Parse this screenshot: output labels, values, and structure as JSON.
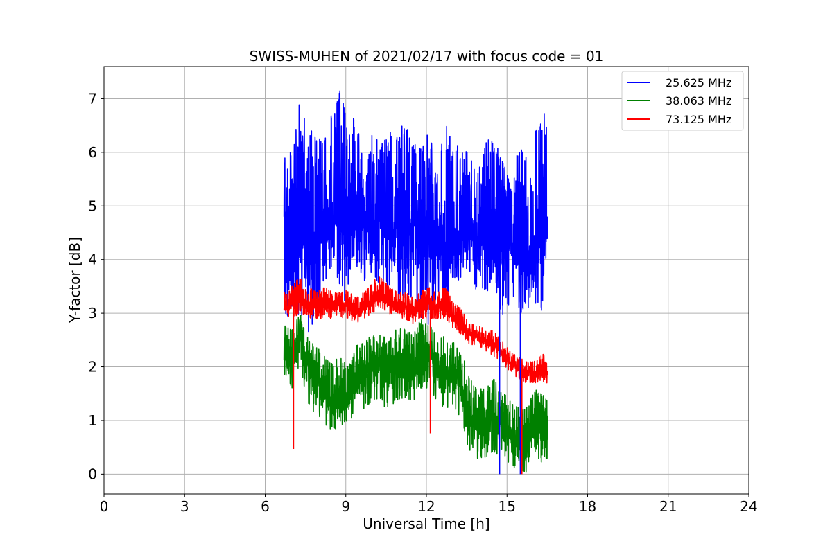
{
  "chart_data": {
    "type": "line",
    "title": "SWISS-MUHEN of 2021/02/17 with focus code = 01",
    "xlabel": "Universal Time [h]",
    "ylabel": "Y-factor [dB]",
    "xlim": [
      0,
      24
    ],
    "ylim": [
      -0.37,
      7.6
    ],
    "xticks": [
      0,
      3,
      6,
      9,
      12,
      15,
      18,
      21,
      24
    ],
    "yticks": [
      0,
      1,
      2,
      3,
      4,
      5,
      6,
      7
    ],
    "grid": true,
    "legend_position": "top-right",
    "series": [
      {
        "name": "25.625 MHz",
        "color": "#0000ff",
        "x": [
          6.7,
          7.0,
          7.3,
          7.6,
          7.9,
          8.2,
          8.5,
          8.8,
          9.1,
          9.4,
          9.7,
          10.0,
          10.3,
          10.6,
          10.9,
          11.2,
          11.5,
          11.8,
          12.1,
          12.4,
          12.7,
          13.0,
          13.3,
          13.6,
          13.9,
          14.2,
          14.5,
          14.8,
          15.1,
          15.4,
          15.7,
          16.0,
          16.3,
          16.5
        ],
        "values": [
          4.6,
          4.4,
          4.8,
          4.2,
          4.6,
          4.7,
          4.8,
          5.0,
          4.9,
          4.7,
          4.8,
          4.6,
          4.9,
          4.8,
          4.6,
          4.5,
          4.6,
          4.7,
          4.8,
          4.6,
          4.0,
          4.4,
          4.5,
          4.6,
          4.5,
          4.4,
          4.2,
          4.3,
          4.5,
          4.2,
          4.1,
          4.3,
          4.4,
          4.8
        ],
        "low": [
          3.0,
          2.8,
          2.9,
          2.4,
          3.0,
          3.6,
          3.8,
          3.4,
          3.0,
          3.8,
          3.6,
          3.7,
          3.4,
          3.2,
          3.3,
          3.2,
          3.3,
          3.0,
          2.6,
          3.4,
          3.0,
          3.6,
          3.6,
          3.8,
          3.4,
          3.4,
          3.3,
          2.9,
          3.2,
          3.0,
          3.0,
          3.2,
          3.0,
          4.4
        ],
        "high": [
          6.3,
          6.0,
          7.1,
          6.4,
          6.5,
          6.2,
          6.8,
          7.2,
          6.4,
          6.8,
          5.6,
          6.4,
          6.1,
          6.5,
          6.3,
          6.6,
          6.2,
          6.1,
          6.5,
          5.6,
          6.7,
          6.1,
          6.3,
          6.0,
          5.7,
          6.2,
          6.3,
          5.9,
          5.5,
          6.0,
          6.1,
          6.4,
          6.6,
          7.0
        ]
      },
      {
        "name": "38.063 MHz",
        "color": "#008000",
        "x": [
          6.7,
          7.0,
          7.3,
          7.6,
          7.9,
          8.2,
          8.5,
          8.8,
          9.1,
          9.4,
          9.7,
          10.0,
          10.3,
          10.6,
          10.9,
          11.2,
          11.5,
          11.8,
          12.1,
          12.4,
          12.7,
          13.0,
          13.3,
          13.6,
          13.9,
          14.2,
          14.5,
          14.8,
          15.1,
          15.4,
          15.7,
          16.0,
          16.3,
          16.5
        ],
        "values": [
          2.4,
          2.0,
          2.6,
          2.0,
          1.8,
          1.5,
          1.4,
          1.5,
          1.4,
          1.8,
          1.9,
          2.0,
          2.1,
          1.9,
          2.2,
          2.0,
          1.9,
          2.1,
          2.3,
          2.0,
          1.9,
          1.9,
          1.7,
          1.1,
          1.0,
          0.9,
          1.1,
          1.0,
          0.8,
          0.7,
          0.5,
          0.9,
          0.8,
          0.7
        ],
        "low": [
          1.7,
          1.6,
          1.9,
          1.3,
          1.1,
          0.9,
          0.8,
          0.9,
          1.0,
          1.1,
          1.2,
          1.4,
          1.3,
          1.2,
          1.4,
          1.4,
          1.3,
          1.6,
          1.6,
          1.3,
          1.2,
          1.3,
          1.0,
          0.4,
          0.3,
          0.3,
          0.4,
          0.3,
          0.2,
          0.1,
          0.0,
          0.3,
          0.2,
          0.3
        ],
        "high": [
          2.8,
          2.7,
          3.2,
          2.5,
          2.4,
          2.2,
          2.1,
          2.2,
          2.0,
          2.4,
          2.5,
          2.6,
          2.6,
          2.5,
          2.8,
          2.7,
          2.6,
          2.9,
          2.8,
          2.6,
          2.6,
          2.5,
          2.3,
          1.8,
          1.6,
          1.6,
          1.8,
          1.6,
          1.4,
          1.3,
          1.2,
          1.6,
          1.5,
          1.4
        ]
      },
      {
        "name": "73.125 MHz",
        "color": "#ff0000",
        "x": [
          6.7,
          7.0,
          7.3,
          7.6,
          7.9,
          8.2,
          8.5,
          8.8,
          9.1,
          9.4,
          9.7,
          10.0,
          10.3,
          10.6,
          10.9,
          11.2,
          11.5,
          11.8,
          12.1,
          12.4,
          12.7,
          13.0,
          13.3,
          13.6,
          13.9,
          14.2,
          14.5,
          14.8,
          15.1,
          15.4,
          15.7,
          16.0,
          16.3,
          16.5
        ],
        "values": [
          3.1,
          3.2,
          3.3,
          3.2,
          3.1,
          3.2,
          3.1,
          3.2,
          3.1,
          3.0,
          3.1,
          3.3,
          3.4,
          3.2,
          3.1,
          3.1,
          3.0,
          3.1,
          3.2,
          3.1,
          3.2,
          2.9,
          2.8,
          2.6,
          2.6,
          2.5,
          2.4,
          2.3,
          2.1,
          2.0,
          1.9,
          1.9,
          1.9,
          1.9
        ],
        "low": [
          2.9,
          2.9,
          3.0,
          2.9,
          2.9,
          2.9,
          2.9,
          2.9,
          2.9,
          2.8,
          2.9,
          3.0,
          3.1,
          3.0,
          2.9,
          2.9,
          2.8,
          2.9,
          2.9,
          2.9,
          2.9,
          2.7,
          2.6,
          2.4,
          2.4,
          2.3,
          2.2,
          2.1,
          1.9,
          1.8,
          1.7,
          1.7,
          1.7,
          1.7
        ],
        "high": [
          3.4,
          3.5,
          3.7,
          3.5,
          3.4,
          3.5,
          3.4,
          3.5,
          3.4,
          3.3,
          3.4,
          3.6,
          3.7,
          3.5,
          3.4,
          3.4,
          3.3,
          3.4,
          3.5,
          3.4,
          3.5,
          3.2,
          3.1,
          2.8,
          2.8,
          2.7,
          2.7,
          2.5,
          2.3,
          2.2,
          2.1,
          2.1,
          2.3,
          2.1
        ]
      }
    ],
    "spikes": [
      {
        "series": 2,
        "x": 7.05,
        "y": 0.47
      },
      {
        "series": 2,
        "x": 12.15,
        "y": 0.76
      },
      {
        "series": 2,
        "x": 15.55,
        "y": 0.0
      },
      {
        "series": 0,
        "x": 14.72,
        "y": 0.0
      },
      {
        "series": 0,
        "x": 15.5,
        "y": 0.0
      }
    ]
  }
}
